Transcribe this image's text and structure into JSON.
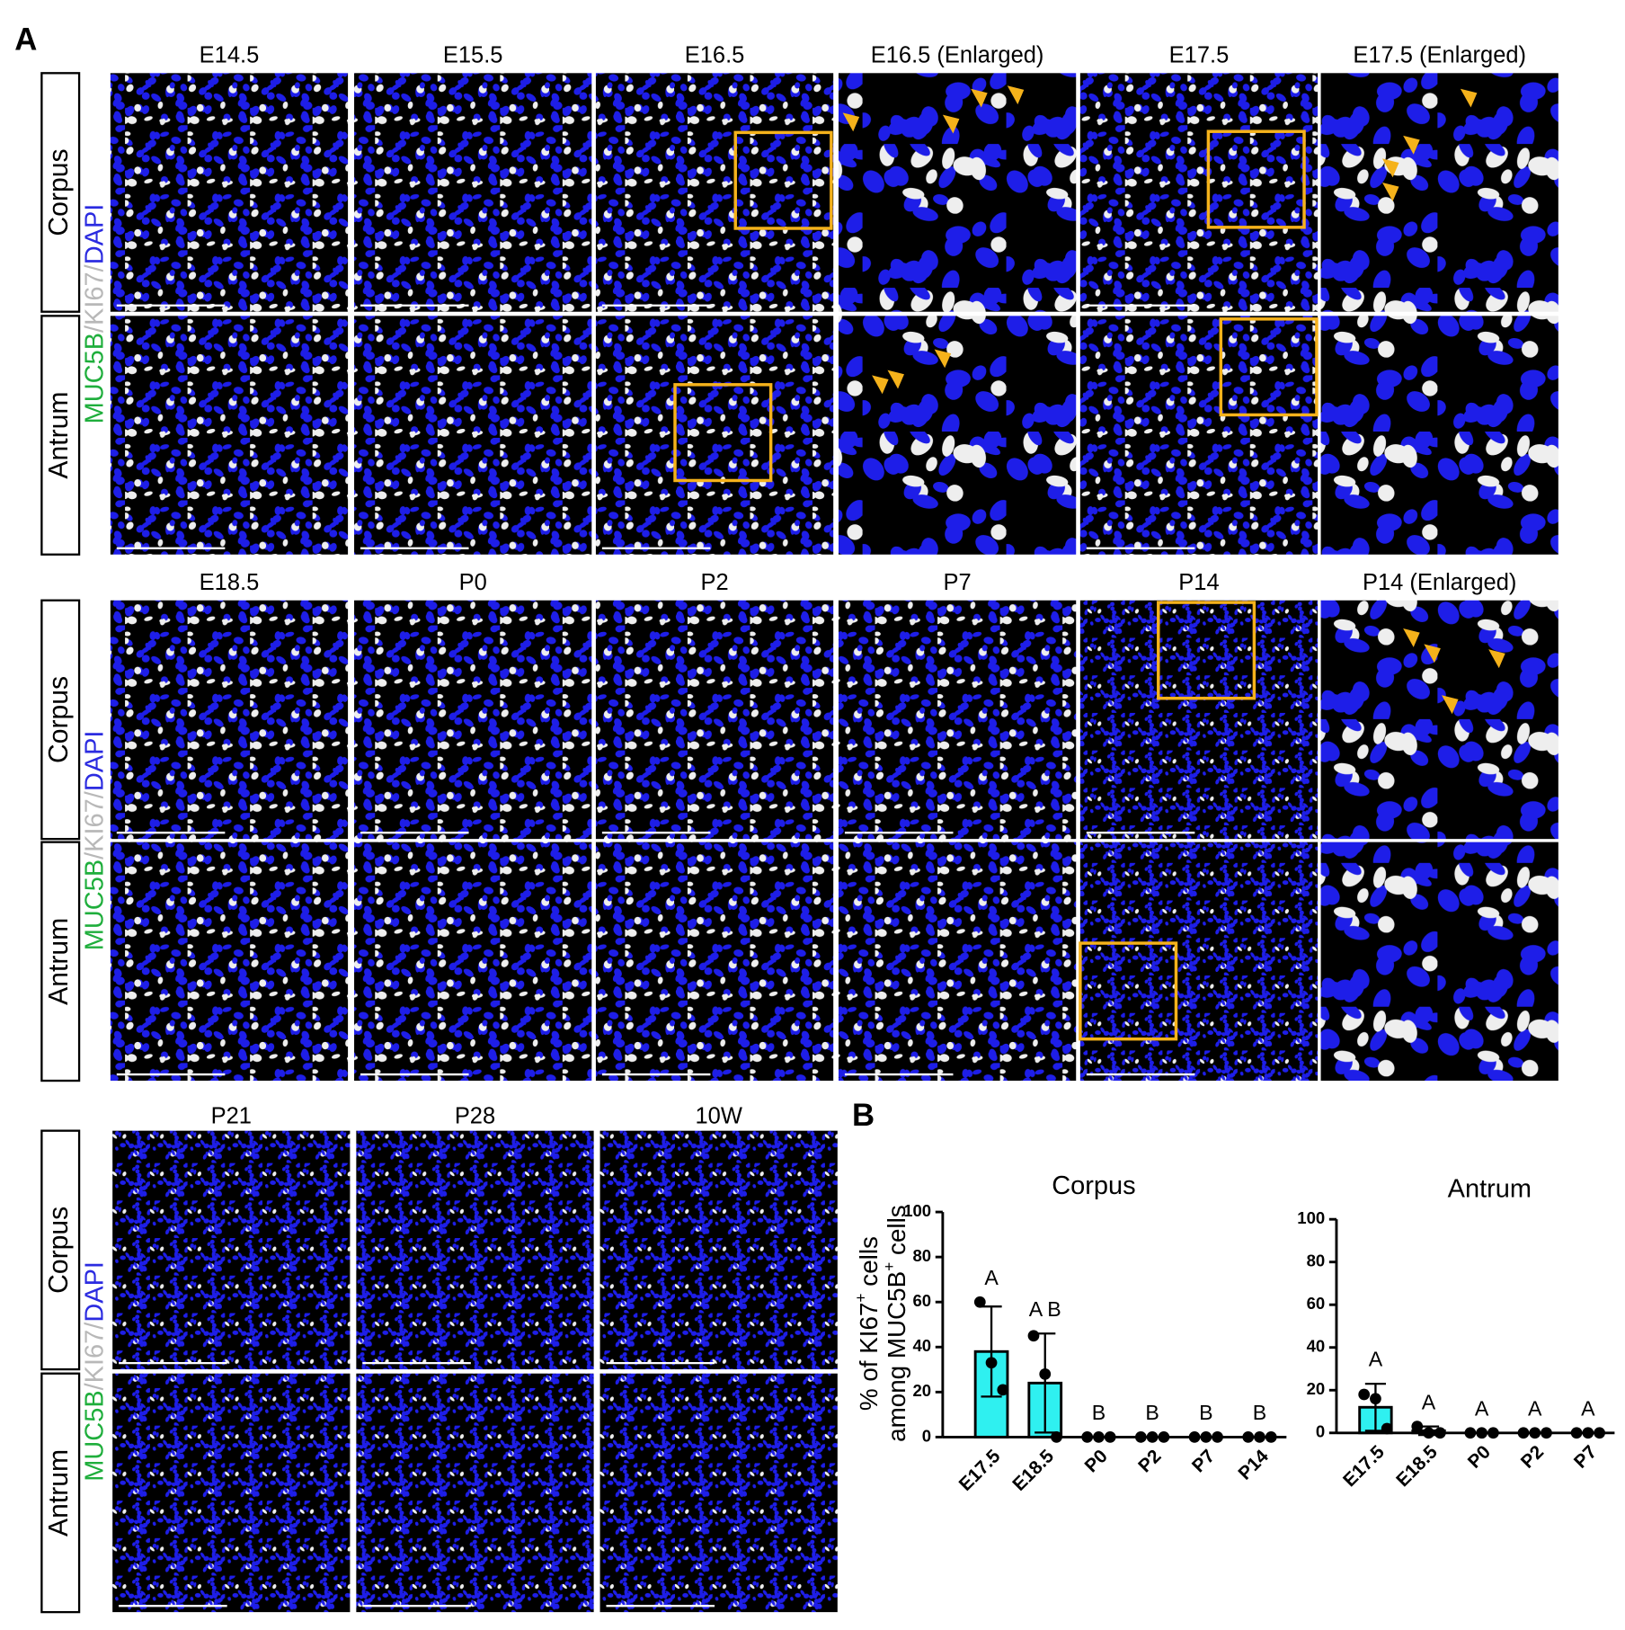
{
  "figure": {
    "label": "A",
    "stain": [
      {
        "text": "MUC5B",
        "color": "#1fae3c"
      },
      {
        "text": "/KI67/",
        "color": "#b8b8b8"
      },
      {
        "text": "DAPI",
        "color": "#2b2be0"
      }
    ],
    "sections": [
      {
        "columns": [
          "E14.5",
          "E15.5",
          "E16.5",
          "E16.5 (Enlarged)",
          "E17.5",
          "E17.5 (Enlarged)"
        ],
        "rows": [
          "Corpus",
          "Antrum"
        ]
      },
      {
        "columns": [
          "E18.5",
          "P0",
          "P2",
          "P7",
          "P14",
          "P14 (Enlarged)"
        ],
        "rows": [
          "Corpus",
          "Antrum"
        ]
      },
      {
        "columns": [
          "P21",
          "P28",
          "10W"
        ],
        "rows": [
          "Corpus",
          "Antrum"
        ]
      }
    ],
    "panel_b_label": "B"
  },
  "chart_data": [
    {
      "type": "bar",
      "title": "Corpus",
      "ylabel": [
        [
          "% of KI67",
          "+",
          " cells"
        ],
        [
          "among MUC5B",
          "+",
          " cells"
        ]
      ],
      "categories": [
        "E17.5",
        "E18.5",
        "P0",
        "P2",
        "P7",
        "P14"
      ],
      "values": [
        38,
        24,
        0,
        0,
        0,
        0
      ],
      "errors": [
        20,
        22,
        0,
        0,
        0,
        0
      ],
      "points": [
        [
          60,
          33,
          21
        ],
        [
          45,
          28,
          0
        ],
        [
          0,
          0,
          0
        ],
        [
          0,
          0,
          0
        ],
        [
          0,
          0,
          0
        ],
        [
          0,
          0,
          0
        ]
      ],
      "letters": [
        "A",
        "A B",
        "B",
        "B",
        "B",
        "B"
      ],
      "color": "#2ff0f0",
      "ylim": [
        0,
        100
      ],
      "yticks": [
        0,
        20,
        40,
        60,
        80,
        100
      ]
    },
    {
      "type": "bar",
      "title": "Antrum",
      "categories": [
        "E17.5",
        "E18.5",
        "P0",
        "P2",
        "P7"
      ],
      "values": [
        12,
        1,
        0,
        0,
        0
      ],
      "errors": [
        11,
        2,
        0,
        0,
        0
      ],
      "points": [
        [
          18,
          16,
          2
        ],
        [
          3,
          0,
          0
        ],
        [
          0,
          0,
          0
        ],
        [
          0,
          0,
          0
        ],
        [
          0,
          0,
          0
        ]
      ],
      "letters": [
        "A",
        "A",
        "A",
        "A",
        "A"
      ],
      "color": "#2ff0f0",
      "ylim": [
        0,
        100
      ],
      "yticks": [
        0,
        20,
        40,
        60,
        80,
        100
      ]
    }
  ]
}
